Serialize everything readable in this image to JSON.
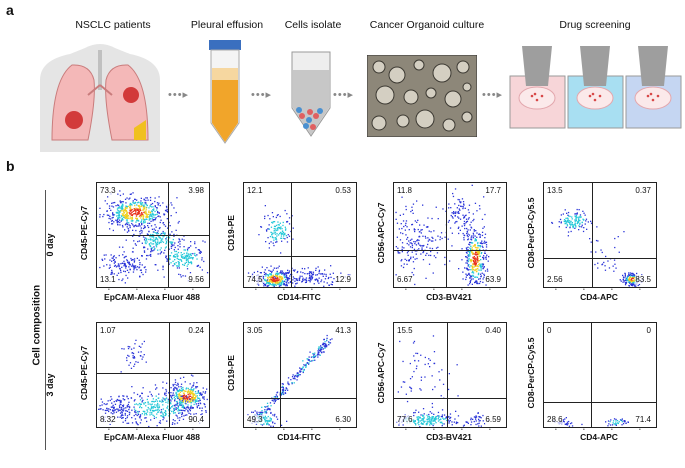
{
  "panel_a": {
    "letter": "a",
    "steps": [
      "NSCLC patients",
      "Pleural effusion",
      "Cells isolate",
      "Cancer Organoid culture",
      "Drug screening"
    ]
  },
  "panel_b": {
    "letter": "b",
    "side_label": "Cell composition",
    "row_labels": [
      "0 day",
      "3 day"
    ],
    "colors": {
      "low": "#2b35d8",
      "mid": "#25c8d8",
      "high": "#f0d020",
      "peak": "#e8301a"
    }
  },
  "chart_data": [
    {
      "type": "scatter",
      "day": "0 day",
      "xlabel": "EpCAM-Alexa Fluor 488",
      "ylabel": "CD45-PE-Cy7",
      "quadrants": {
        "upper_left": "73.3",
        "upper_right": "3.98",
        "lower_left": "13.1",
        "lower_right": "9.56"
      }
    },
    {
      "type": "scatter",
      "day": "0 day",
      "xlabel": "CD14-FITC",
      "ylabel": "CD19-PE",
      "quadrants": {
        "upper_left": "12.1",
        "upper_right": "0.53",
        "lower_left": "74.5",
        "lower_right": "12.9"
      }
    },
    {
      "type": "scatter",
      "day": "0 day",
      "xlabel": "CD3-BV421",
      "ylabel": "CD56-APC-Cy7",
      "quadrants": {
        "upper_left": "11.8",
        "upper_right": "17.7",
        "lower_left": "6.67",
        "lower_right": "63.9"
      }
    },
    {
      "type": "scatter",
      "day": "0 day",
      "xlabel": "CD4-APC",
      "ylabel": "CD8-PerCP-Cy5.5",
      "quadrants": {
        "upper_left": "13.5",
        "upper_right": "0.37",
        "lower_left": "2.56",
        "lower_right": "83.5"
      }
    },
    {
      "type": "scatter",
      "day": "3 day",
      "xlabel": "EpCAM-Alexa Fluor 488",
      "ylabel": "CD45-PE-Cy7",
      "quadrants": {
        "upper_left": "1.07",
        "upper_right": "0.24",
        "lower_left": "8.32",
        "lower_right": "90.4"
      }
    },
    {
      "type": "scatter",
      "day": "3 day",
      "xlabel": "CD14-FITC",
      "ylabel": "CD19-PE",
      "quadrants": {
        "upper_left": "3.05",
        "upper_right": "41.3",
        "lower_left": "49.3",
        "lower_right": "6.30"
      }
    },
    {
      "type": "scatter",
      "day": "3 day",
      "xlabel": "CD3-BV421",
      "ylabel": "CD56-APC-Cy7",
      "quadrants": {
        "upper_left": "15.5",
        "upper_right": "0.40",
        "lower_left": "77.6",
        "lower_right": "6.59"
      }
    },
    {
      "type": "scatter",
      "day": "3 day",
      "xlabel": "CD4-APC",
      "ylabel": "CD8-PerCP-Cy5.5",
      "quadrants": {
        "upper_left": "0",
        "upper_right": "0",
        "lower_left": "28.6",
        "lower_right": "71.4"
      }
    }
  ]
}
